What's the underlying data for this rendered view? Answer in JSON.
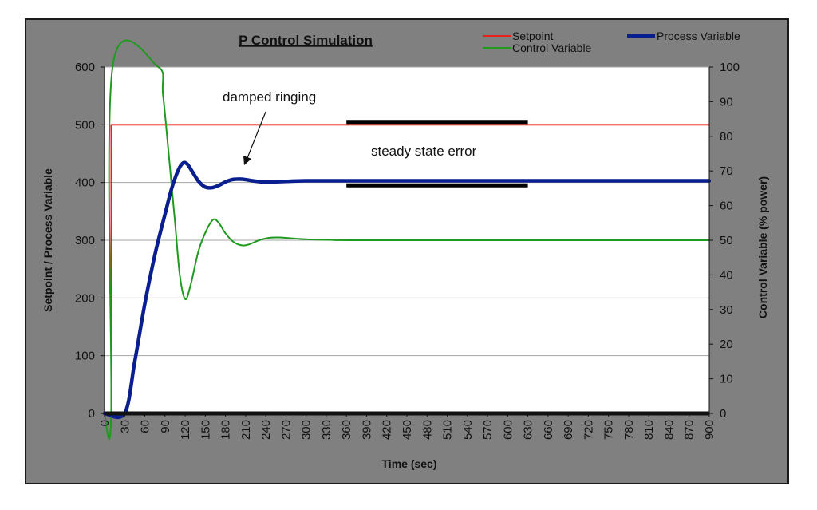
{
  "chart_data": {
    "type": "line",
    "title": "P Control Simulation",
    "xlabel": "Time (sec)",
    "ylabel": "Setpoint / Process Variable",
    "y2label": "Control Variable (% power)",
    "xlim": [
      0,
      900
    ],
    "ylim": [
      0,
      600
    ],
    "y2lim": [
      0,
      100
    ],
    "x_ticks": [
      0,
      30,
      60,
      90,
      120,
      150,
      180,
      210,
      240,
      270,
      300,
      330,
      360,
      390,
      420,
      450,
      480,
      510,
      540,
      570,
      600,
      630,
      660,
      690,
      720,
      750,
      780,
      810,
      840,
      870,
      900
    ],
    "y_ticks": [
      0,
      100,
      200,
      300,
      400,
      500,
      600
    ],
    "y2_ticks": [
      0,
      10,
      20,
      30,
      40,
      50,
      60,
      70,
      80,
      90,
      100
    ],
    "grid": "horizontal",
    "legend_position": "top-right",
    "series": [
      {
        "name": "Setpoint",
        "axis": "left",
        "color": "#e8231e",
        "x": [
          0,
          10,
          10,
          900
        ],
        "y": [
          0,
          0,
          500,
          500
        ]
      },
      {
        "name": "Control Variable",
        "axis": "right",
        "color": "#1f9a1f",
        "x": [
          0,
          10,
          12,
          80,
          87,
          95,
          105,
          112,
          120,
          128,
          140,
          152,
          162,
          170,
          180,
          192,
          205,
          215,
          230,
          245,
          260,
          275,
          290,
          310,
          340,
          400,
          900
        ],
        "y": [
          0,
          0,
          100,
          100,
          92,
          76,
          55,
          40,
          33,
          37,
          47,
          53,
          56,
          55,
          52,
          49.5,
          48.5,
          48.8,
          50,
          50.7,
          50.8,
          50.6,
          50.4,
          50.2,
          50.1,
          50,
          50
        ]
      },
      {
        "name": "Process Variable",
        "axis": "left",
        "color": "#0a1f8f",
        "x": [
          0,
          30,
          45,
          60,
          75,
          90,
          100,
          110,
          117,
          123,
          130,
          140,
          150,
          160,
          170,
          180,
          190,
          200,
          210,
          220,
          235,
          250,
          270,
          300,
          340,
          400,
          900
        ],
        "y": [
          0,
          0,
          90,
          190,
          275,
          345,
          390,
          422,
          434,
          432,
          420,
          402,
          392,
          391,
          395,
          401,
          405,
          406,
          405,
          403,
          401,
          401,
          402,
          403,
          403,
          403,
          403
        ]
      }
    ],
    "annotations": [
      {
        "text": "damped ringing",
        "target_x": 215,
        "target_y": 408
      },
      {
        "text": "steady state error"
      }
    ],
    "error_bracket": {
      "x_start": 360,
      "x_end": 630,
      "y_top": 505,
      "y_bottom": 395
    }
  }
}
